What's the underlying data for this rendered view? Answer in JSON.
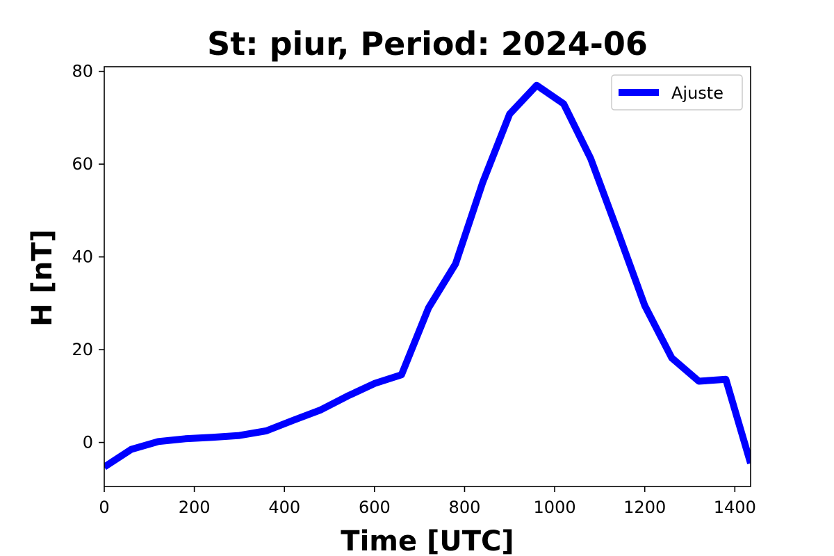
{
  "chart_data": {
    "type": "line",
    "title": "St: piur, Period: 2024-06",
    "xlabel": "Time [UTC]",
    "ylabel": "H [nT]",
    "xlim": [
      0,
      1435
    ],
    "ylim": [
      -9.5,
      81
    ],
    "xticks": [
      0,
      200,
      400,
      600,
      800,
      1000,
      1200,
      1400
    ],
    "yticks": [
      0,
      20,
      40,
      60,
      80
    ],
    "grid": false,
    "legend_position": "top-right",
    "series": [
      {
        "name": "Ajuste",
        "color": "#0000ff",
        "x": [
          0,
          60,
          120,
          180,
          240,
          300,
          360,
          420,
          480,
          540,
          600,
          660,
          720,
          780,
          840,
          900,
          960,
          1020,
          1080,
          1140,
          1200,
          1260,
          1320,
          1380,
          1435
        ],
        "y": [
          -5.3,
          -1.5,
          0.2,
          0.8,
          1.1,
          1.5,
          2.5,
          4.8,
          7.0,
          10.0,
          12.7,
          14.6,
          29.0,
          38.5,
          56.0,
          70.8,
          77.0,
          73.0,
          61.2,
          45.5,
          29.5,
          18.2,
          13.2,
          13.6,
          -4.5
        ]
      }
    ]
  }
}
